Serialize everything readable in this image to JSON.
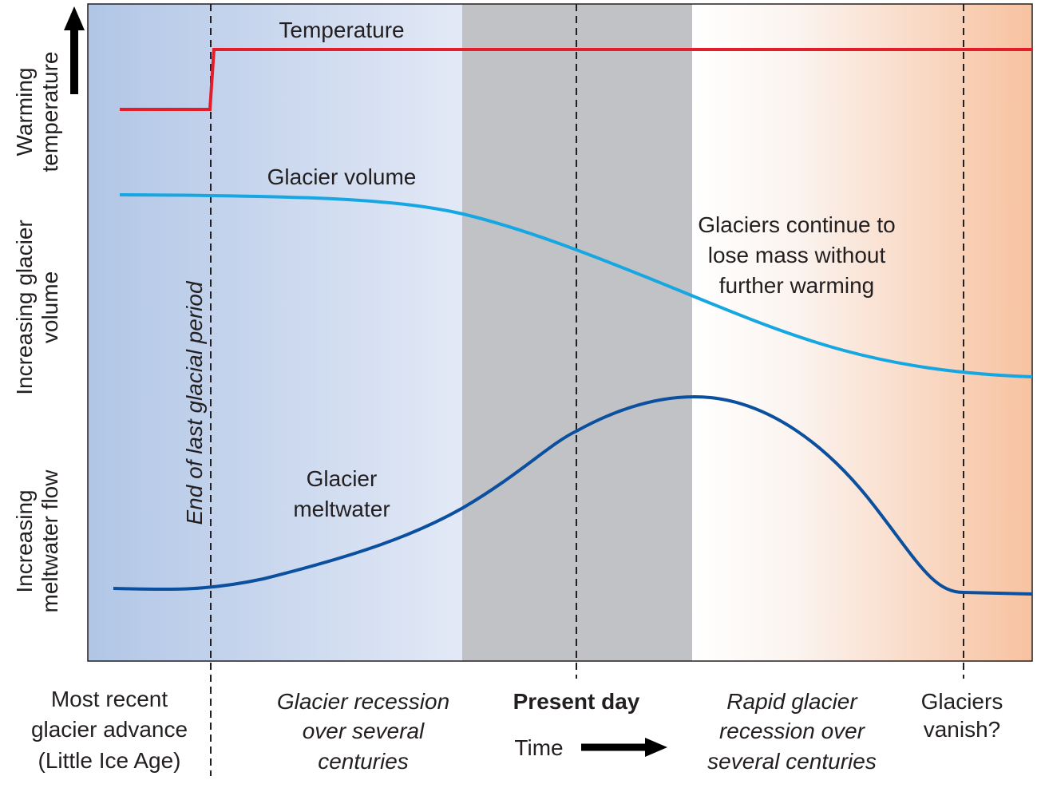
{
  "curves": {
    "temperature": "Temperature",
    "glacier_volume": "Glacier volume",
    "glacier_meltwater": [
      "Glacier",
      "meltwater"
    ]
  },
  "annotations": {
    "continue_loss": [
      "Glaciers continue to",
      "lose mass without",
      "further warming"
    ],
    "end_glacial": "End of last glacial period"
  },
  "y_labels": {
    "temperature": [
      "Warming",
      "temperature"
    ],
    "volume": [
      "Increasing glacier",
      "volume"
    ],
    "meltwater": [
      "Increasing",
      "meltwater flow"
    ]
  },
  "x_labels": {
    "little_ice_age": [
      "Most recent",
      "glacier advance",
      "(Little Ice Age)"
    ],
    "recession": [
      "Glacier recession",
      "over several",
      "centuries"
    ],
    "present": "Present day",
    "time": "Time",
    "rapid": [
      "Rapid glacier",
      "recession over",
      "several centuries"
    ],
    "vanish": [
      "Glaciers",
      "vanish?"
    ]
  }
}
